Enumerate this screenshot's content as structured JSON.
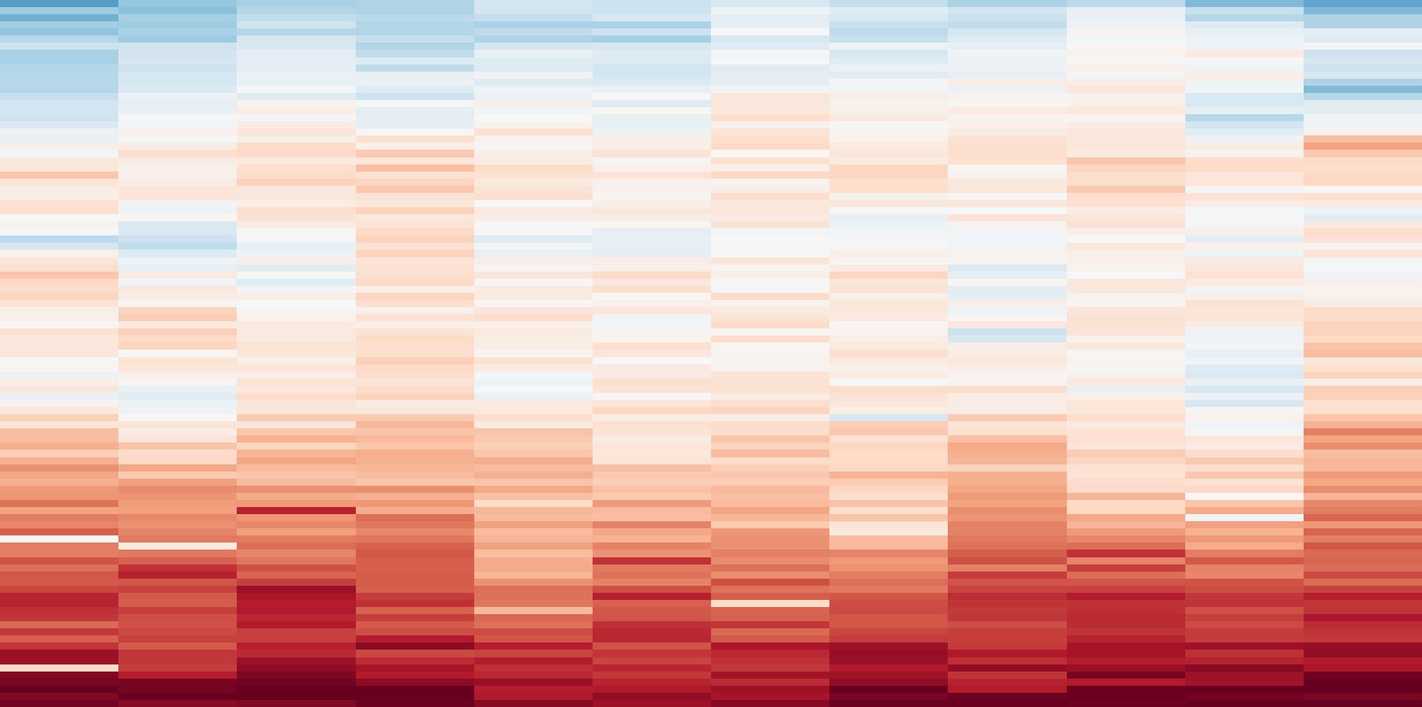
{
  "chart_data": {
    "type": "heatmap",
    "title": "",
    "xlabel": "",
    "ylabel": "",
    "n_columns": 12,
    "n_rows": 99,
    "colormap": "RdBu_r",
    "value_range": [
      -1,
      1
    ],
    "ticks_shown": false,
    "legend": "none",
    "grid": false,
    "stops": [
      "#2166ac",
      "#4393c3",
      "#92c5de",
      "#d1e5f0",
      "#f7f7f7",
      "#fddbc7",
      "#f4a582",
      "#d6604d",
      "#b2182b",
      "#67001f"
    ],
    "columns": [
      {
        "anchors": [
          [
            0,
            -0.62
          ],
          [
            5,
            -0.45
          ],
          [
            10,
            -0.35
          ],
          [
            16,
            -0.38
          ],
          [
            20,
            -0.1
          ],
          [
            24,
            0.1
          ],
          [
            30,
            0.0
          ],
          [
            33,
            -0.3
          ],
          [
            38,
            0.1
          ],
          [
            45,
            0.0
          ],
          [
            55,
            -0.1
          ],
          [
            62,
            0.25
          ],
          [
            68,
            0.35
          ],
          [
            73,
            0.45
          ],
          [
            78,
            0.55
          ],
          [
            83,
            0.65
          ],
          [
            88,
            0.62
          ],
          [
            92,
            0.8
          ],
          [
            96,
            0.9
          ],
          [
            98,
            1.0
          ]
        ],
        "overrides": [
          [
            75,
            -0.1
          ],
          [
            91,
            0.85
          ],
          [
            93,
            0.1
          ],
          [
            96,
            1.0
          ]
        ]
      },
      {
        "anchors": [
          [
            0,
            -0.5
          ],
          [
            5,
            -0.45
          ],
          [
            10,
            -0.3
          ],
          [
            16,
            -0.15
          ],
          [
            20,
            0.0
          ],
          [
            24,
            0.05
          ],
          [
            30,
            -0.1
          ],
          [
            33,
            -0.35
          ],
          [
            38,
            -0.1
          ],
          [
            45,
            0.1
          ],
          [
            55,
            -0.15
          ],
          [
            62,
            0.15
          ],
          [
            68,
            0.35
          ],
          [
            73,
            0.4
          ],
          [
            78,
            0.55
          ],
          [
            83,
            0.65
          ],
          [
            88,
            0.62
          ],
          [
            92,
            0.7
          ],
          [
            96,
            0.9
          ],
          [
            98,
            1.0
          ]
        ],
        "overrides": [
          [
            76,
            0.0
          ],
          [
            79,
            0.7
          ],
          [
            80,
            0.75
          ],
          [
            95,
            0.95
          ],
          [
            97,
            1.0
          ]
        ]
      },
      {
        "anchors": [
          [
            0,
            -0.55
          ],
          [
            5,
            -0.3
          ],
          [
            10,
            -0.2
          ],
          [
            16,
            -0.1
          ],
          [
            20,
            0.0
          ],
          [
            24,
            0.1
          ],
          [
            30,
            0.0
          ],
          [
            33,
            -0.1
          ],
          [
            38,
            -0.15
          ],
          [
            45,
            -0.05
          ],
          [
            55,
            0.0
          ],
          [
            62,
            0.2
          ],
          [
            68,
            0.35
          ],
          [
            73,
            0.45
          ],
          [
            78,
            0.5
          ],
          [
            83,
            0.7
          ],
          [
            88,
            0.68
          ],
          [
            92,
            0.75
          ],
          [
            96,
            0.95
          ],
          [
            98,
            1.0
          ]
        ],
        "overrides": [
          [
            71,
            0.75
          ],
          [
            82,
            0.85
          ],
          [
            96,
            1.0
          ],
          [
            97,
            1.0
          ]
        ]
      },
      {
        "anchors": [
          [
            0,
            -0.5
          ],
          [
            5,
            -0.4
          ],
          [
            10,
            -0.3
          ],
          [
            16,
            -0.2
          ],
          [
            20,
            0.05
          ],
          [
            24,
            0.15
          ],
          [
            30,
            0.05
          ],
          [
            33,
            0.15
          ],
          [
            38,
            0.0
          ],
          [
            45,
            0.05
          ],
          [
            55,
            0.05
          ],
          [
            62,
            0.25
          ],
          [
            68,
            0.3
          ],
          [
            73,
            0.45
          ],
          [
            78,
            0.5
          ],
          [
            83,
            0.6
          ],
          [
            88,
            0.7
          ],
          [
            92,
            0.75
          ],
          [
            96,
            0.95
          ],
          [
            98,
            1.0
          ]
        ],
        "overrides": [
          [
            90,
            0.9
          ],
          [
            96,
            1.0
          ]
        ]
      },
      {
        "anchors": [
          [
            0,
            -0.4
          ],
          [
            5,
            -0.35
          ],
          [
            10,
            -0.25
          ],
          [
            16,
            -0.05
          ],
          [
            20,
            0.0
          ],
          [
            24,
            0.05
          ],
          [
            30,
            -0.05
          ],
          [
            33,
            -0.2
          ],
          [
            38,
            0.0
          ],
          [
            45,
            0.0
          ],
          [
            55,
            -0.1
          ],
          [
            62,
            0.2
          ],
          [
            68,
            0.3
          ],
          [
            73,
            0.35
          ],
          [
            78,
            0.3
          ],
          [
            83,
            0.45
          ],
          [
            88,
            0.65
          ],
          [
            92,
            0.72
          ],
          [
            96,
            0.8
          ],
          [
            98,
            0.9
          ]
        ],
        "overrides": [
          [
            70,
            0.1
          ],
          [
            85,
            0.25
          ]
        ]
      },
      {
        "anchors": [
          [
            0,
            -0.35
          ],
          [
            5,
            -0.4
          ],
          [
            10,
            -0.3
          ],
          [
            16,
            -0.15
          ],
          [
            20,
            -0.05
          ],
          [
            24,
            -0.05
          ],
          [
            30,
            -0.05
          ],
          [
            33,
            -0.2
          ],
          [
            38,
            0.0
          ],
          [
            45,
            -0.05
          ],
          [
            55,
            0.0
          ],
          [
            62,
            0.1
          ],
          [
            68,
            0.2
          ],
          [
            73,
            0.35
          ],
          [
            78,
            0.4
          ],
          [
            83,
            0.65
          ],
          [
            88,
            0.62
          ],
          [
            92,
            0.68
          ],
          [
            96,
            0.75
          ],
          [
            98,
            0.85
          ]
        ],
        "overrides": [
          [
            78,
            0.7
          ]
        ]
      },
      {
        "anchors": [
          [
            0,
            -0.3
          ],
          [
            5,
            -0.2
          ],
          [
            10,
            -0.15
          ],
          [
            16,
            0.0
          ],
          [
            20,
            0.0
          ],
          [
            24,
            0.05
          ],
          [
            30,
            0.0
          ],
          [
            33,
            -0.05
          ],
          [
            38,
            0.0
          ],
          [
            45,
            0.0
          ],
          [
            55,
            0.0
          ],
          [
            62,
            0.15
          ],
          [
            68,
            0.3
          ],
          [
            73,
            0.25
          ],
          [
            78,
            0.45
          ],
          [
            83,
            0.55
          ],
          [
            88,
            0.6
          ],
          [
            92,
            0.7
          ],
          [
            96,
            0.75
          ],
          [
            98,
            0.8
          ]
        ],
        "overrides": [
          [
            84,
            0.1
          ],
          [
            90,
            0.8
          ]
        ]
      },
      {
        "anchors": [
          [
            0,
            -0.35
          ],
          [
            5,
            -0.3
          ],
          [
            10,
            -0.15
          ],
          [
            16,
            -0.05
          ],
          [
            20,
            0.0
          ],
          [
            24,
            0.1
          ],
          [
            30,
            -0.1
          ],
          [
            33,
            -0.05
          ],
          [
            38,
            0.05
          ],
          [
            45,
            -0.05
          ],
          [
            55,
            0.0
          ],
          [
            62,
            0.15
          ],
          [
            68,
            0.2
          ],
          [
            73,
            0.1
          ],
          [
            78,
            0.45
          ],
          [
            83,
            0.6
          ],
          [
            88,
            0.7
          ],
          [
            92,
            0.8
          ],
          [
            96,
            0.95
          ],
          [
            98,
            1.0
          ]
        ],
        "overrides": [
          [
            58,
            -0.3
          ],
          [
            74,
            0.0
          ],
          [
            92,
            0.85
          ],
          [
            96,
            1.0
          ]
        ]
      },
      {
        "anchors": [
          [
            0,
            -0.4
          ],
          [
            5,
            -0.35
          ],
          [
            10,
            -0.1
          ],
          [
            16,
            -0.05
          ],
          [
            20,
            0.0
          ],
          [
            24,
            -0.05
          ],
          [
            30,
            -0.05
          ],
          [
            33,
            -0.1
          ],
          [
            38,
            -0.2
          ],
          [
            45,
            -0.05
          ],
          [
            55,
            0.0
          ],
          [
            62,
            0.2
          ],
          [
            68,
            0.3
          ],
          [
            73,
            0.35
          ],
          [
            78,
            0.5
          ],
          [
            83,
            0.65
          ],
          [
            88,
            0.7
          ],
          [
            92,
            0.75
          ],
          [
            96,
            0.85
          ],
          [
            98,
            0.9
          ]
        ],
        "overrides": [
          [
            46,
            -0.35
          ],
          [
            47,
            -0.3
          ]
        ]
      },
      {
        "anchors": [
          [
            0,
            -0.35
          ],
          [
            5,
            -0.1
          ],
          [
            10,
            -0.05
          ],
          [
            16,
            0.0
          ],
          [
            20,
            0.05
          ],
          [
            24,
            0.15
          ],
          [
            30,
            0.05
          ],
          [
            33,
            0.0
          ],
          [
            38,
            -0.05
          ],
          [
            45,
            0.0
          ],
          [
            55,
            -0.1
          ],
          [
            62,
            0.1
          ],
          [
            68,
            0.15
          ],
          [
            73,
            0.25
          ],
          [
            78,
            0.55
          ],
          [
            83,
            0.7
          ],
          [
            88,
            0.75
          ],
          [
            92,
            0.8
          ],
          [
            96,
            0.9
          ],
          [
            98,
            0.95
          ]
        ],
        "overrides": [
          [
            77,
            0.7
          ],
          [
            94,
            0.95
          ],
          [
            97,
            1.0
          ]
        ]
      },
      {
        "anchors": [
          [
            0,
            -0.5
          ],
          [
            5,
            -0.1
          ],
          [
            10,
            -0.05
          ],
          [
            16,
            -0.35
          ],
          [
            20,
            0.0
          ],
          [
            24,
            0.0
          ],
          [
            30,
            -0.1
          ],
          [
            33,
            -0.15
          ],
          [
            38,
            -0.05
          ],
          [
            45,
            -0.05
          ],
          [
            55,
            -0.25
          ],
          [
            62,
            0.1
          ],
          [
            68,
            0.15
          ],
          [
            73,
            0.25
          ],
          [
            78,
            0.5
          ],
          [
            83,
            0.6
          ],
          [
            88,
            0.75
          ],
          [
            92,
            0.8
          ],
          [
            96,
            0.95
          ],
          [
            98,
            1.0
          ]
        ],
        "overrides": [
          [
            69,
            -0.1
          ],
          [
            72,
            -0.15
          ],
          [
            96,
            1.0
          ]
        ]
      },
      {
        "anchors": [
          [
            0,
            -0.75
          ],
          [
            5,
            -0.2
          ],
          [
            10,
            -0.4
          ],
          [
            16,
            -0.25
          ],
          [
            20,
            0.3
          ],
          [
            24,
            0.1
          ],
          [
            30,
            -0.15
          ],
          [
            33,
            0.05
          ],
          [
            38,
            -0.1
          ],
          [
            45,
            0.2
          ],
          [
            55,
            0.05
          ],
          [
            62,
            0.3
          ],
          [
            68,
            0.35
          ],
          [
            73,
            0.45
          ],
          [
            78,
            0.5
          ],
          [
            83,
            0.7
          ],
          [
            88,
            0.75
          ],
          [
            92,
            0.85
          ],
          [
            96,
            1.0
          ],
          [
            98,
            1.0
          ]
        ],
        "overrides": [
          [
            12,
            -0.6
          ],
          [
            60,
            0.45
          ],
          [
            86,
            0.8
          ],
          [
            95,
            1.0
          ]
        ]
      }
    ]
  }
}
